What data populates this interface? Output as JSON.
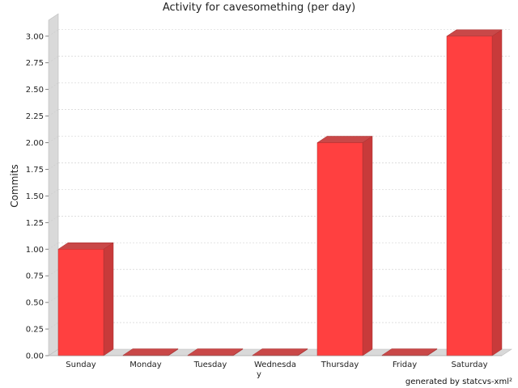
{
  "chart_data": {
    "type": "bar",
    "title": "Activity for cavesomething (per day)",
    "xlabel": "",
    "ylabel": "Commits",
    "categories": [
      "Sunday",
      "Monday",
      "Tuesday",
      "Wednesday",
      "Thursday",
      "Friday",
      "Saturday"
    ],
    "values": [
      1,
      0,
      0,
      0,
      2,
      0,
      3
    ],
    "ylim": [
      0,
      3.15
    ],
    "y_ticks": [
      "0.00",
      "0.25",
      "0.50",
      "0.75",
      "1.00",
      "1.25",
      "1.50",
      "1.75",
      "2.00",
      "2.25",
      "2.50",
      "2.75",
      "3.00"
    ],
    "grid": true,
    "legend": "none",
    "bar_color": "#ff4040",
    "bar_side_color": "#c83a3a",
    "bar_top_color": "#c94848",
    "wall_color": "#d9d9d9",
    "footer": "generated by statcvs-xml²"
  }
}
